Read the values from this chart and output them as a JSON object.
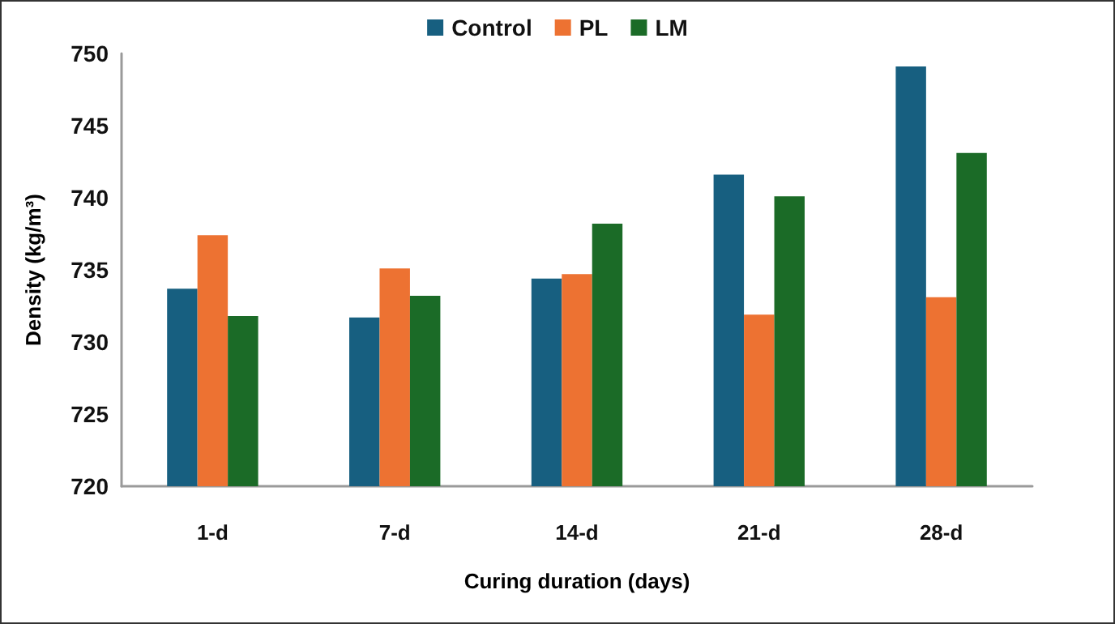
{
  "chart_data": {
    "type": "bar",
    "xlabel": "Curing duration (days)",
    "ylabel": "Density (kg/m³)",
    "categories": [
      "1-d",
      "7-d",
      "14-d",
      "21-d",
      "28-d"
    ],
    "series": [
      {
        "name": "Control",
        "color": "#175f80",
        "values": [
          733.7,
          731.7,
          734.4,
          741.6,
          749.1
        ]
      },
      {
        "name": "PL",
        "color": "#ed7232",
        "values": [
          737.4,
          735.1,
          734.7,
          731.9,
          733.1
        ]
      },
      {
        "name": "LM",
        "color": "#1b6b27",
        "values": [
          731.8,
          733.2,
          738.2,
          740.1,
          743.1
        ]
      }
    ],
    "ylim": [
      720,
      750
    ],
    "yticks": [
      720,
      725,
      730,
      735,
      740,
      745,
      750
    ],
    "grid": false,
    "legend": "top"
  }
}
